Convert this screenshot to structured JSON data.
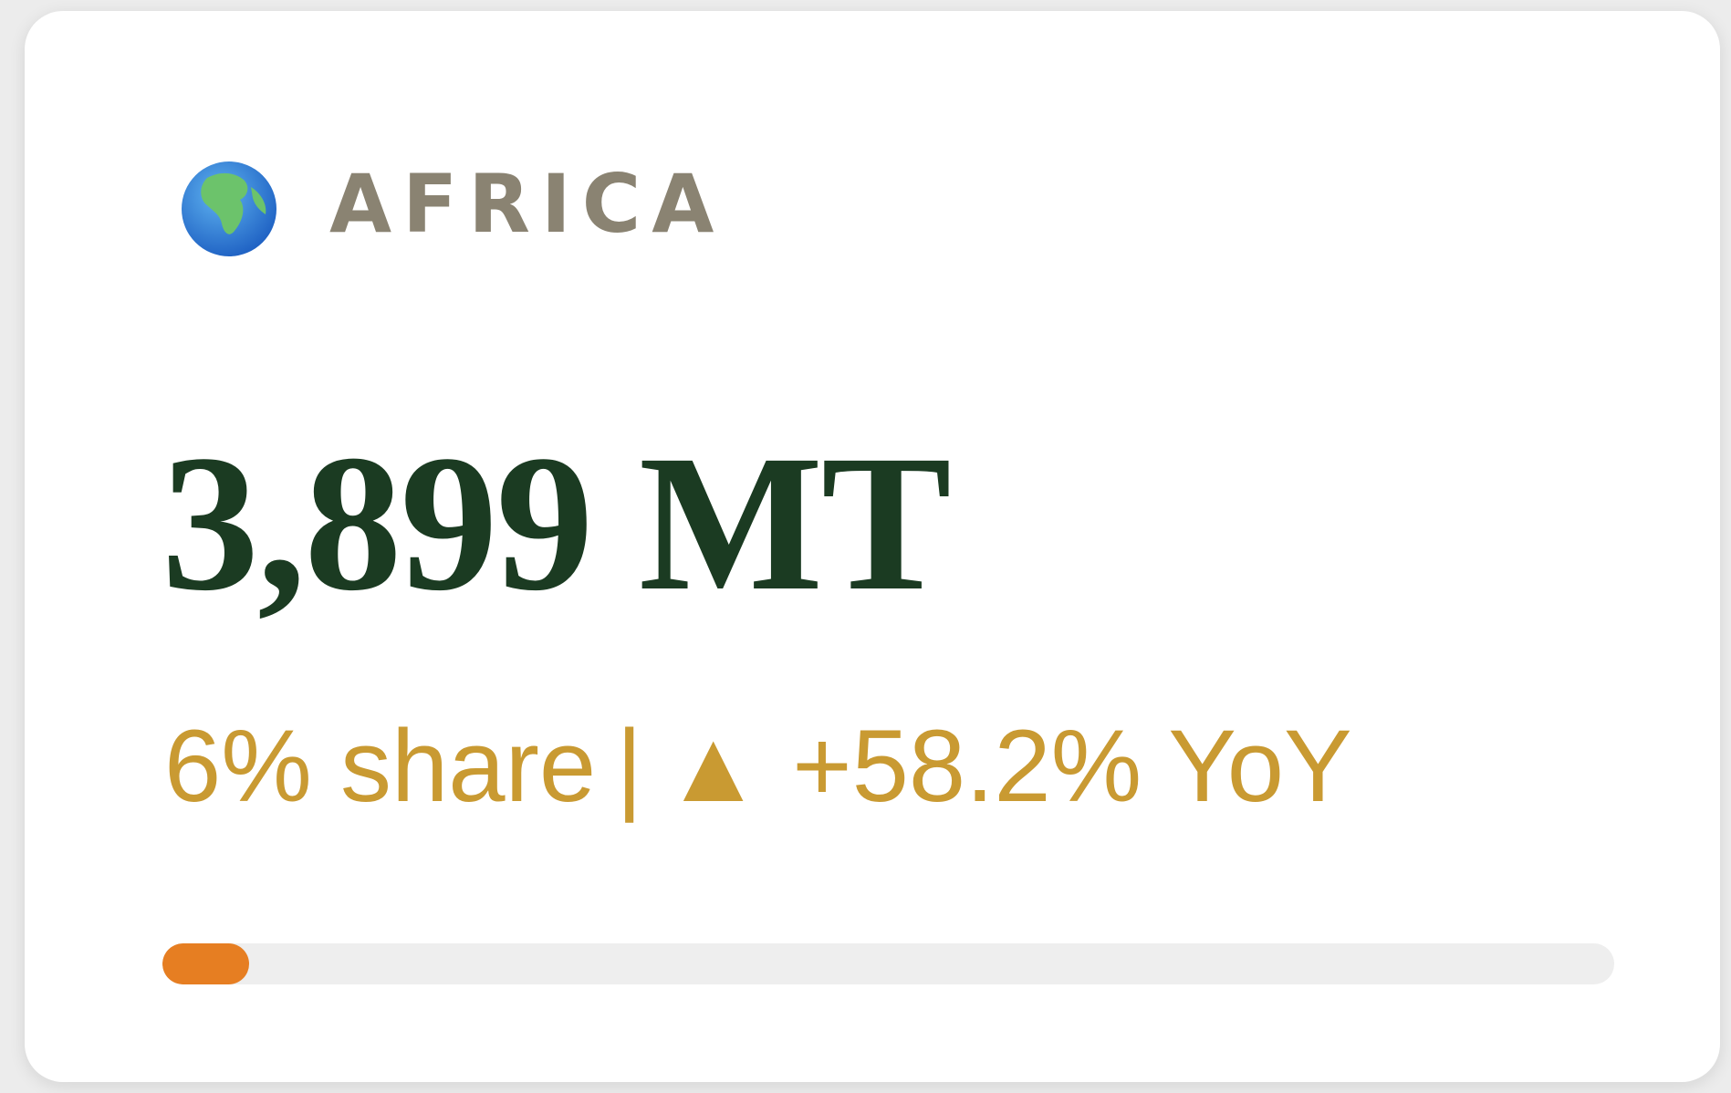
{
  "card": {
    "region": "AFRICA",
    "value": "3,899 MT",
    "share": {
      "value": 6,
      "label": "6% share"
    },
    "separator": "|",
    "change": "▲ +58.2% YoY"
  }
}
